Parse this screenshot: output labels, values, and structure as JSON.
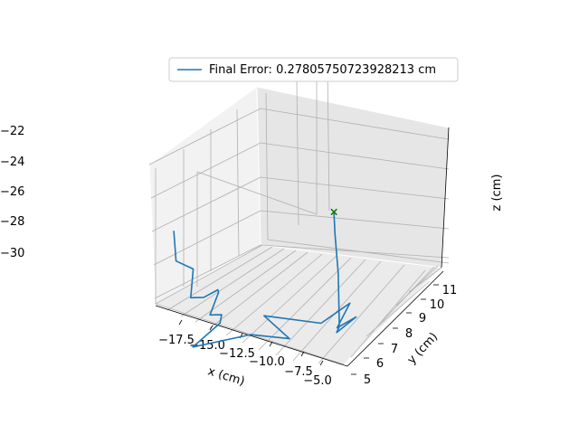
{
  "chart_data": {
    "type": "line3d",
    "legend": {
      "location": "upper-center",
      "entries": [
        {
          "label": "Final Error: 0.27805750723928213 cm",
          "color": "#1f77b4"
        }
      ]
    },
    "axes": {
      "x": {
        "label": "x (cm)",
        "ticks": [
          "−17.5",
          "−15.0",
          "−12.5",
          "−10.0",
          "−7.5",
          "−5.0"
        ]
      },
      "y": {
        "label": "y (cm)",
        "ticks": [
          "5",
          "6",
          "7",
          "8",
          "9",
          "10",
          "11"
        ]
      },
      "z": {
        "label": "z (cm)",
        "ticks": [
          "−30",
          "−28",
          "−26",
          "−24",
          "−22"
        ]
      }
    },
    "grid": true,
    "series": [
      {
        "color": "#1f77b4",
        "points": [
          {
            "x": -17.8,
            "y": 7.6,
            "z": -22.0
          },
          {
            "x": -17.6,
            "y": 7.6,
            "z": -25.2
          },
          {
            "x": -16.3,
            "y": 7.8,
            "z": -26.0
          },
          {
            "x": -16.3,
            "y": 7.6,
            "z": -28.8
          },
          {
            "x": -15.8,
            "y": 8.2,
            "z": -29.5
          },
          {
            "x": -15.2,
            "y": 8.8,
            "z": -29.4
          },
          {
            "x": -14.6,
            "y": 8.3,
            "z": -28.8
          },
          {
            "x": -14.6,
            "y": 7.6,
            "z": -30.2
          },
          {
            "x": -14.0,
            "y": 8.0,
            "z": -30.6
          },
          {
            "x": -13.5,
            "y": 7.4,
            "z": -30.5
          },
          {
            "x": -14.6,
            "y": 6.2,
            "z": -31.6
          },
          {
            "x": -10.9,
            "y": 7.5,
            "z": -31.2
          },
          {
            "x": -8.0,
            "y": 8.0,
            "z": -31.6
          },
          {
            "x": -10.8,
            "y": 8.5,
            "z": -30.6
          },
          {
            "x": -6.5,
            "y": 9.2,
            "z": -31.3
          },
          {
            "x": -5.9,
            "y": 11.0,
            "z": -31.6
          },
          {
            "x": -5.2,
            "y": 9.3,
            "z": -31.6
          },
          {
            "x": -4.7,
            "y": 10.4,
            "z": -31.9
          },
          {
            "x": -4.8,
            "y": 8.9,
            "z": -31.4
          },
          {
            "x": -5.0,
            "y": 9.3,
            "z": -31.4
          },
          {
            "x": -6.5,
            "y": 10.6,
            "z": -28.0
          },
          {
            "x": -7.0,
            "y": 10.8,
            "z": -24.2
          },
          {
            "x": -7.2,
            "y": 10.9,
            "z": -22.0
          }
        ]
      }
    ],
    "markers": [
      {
        "shape": "x",
        "color": "#008000",
        "x": -7.2,
        "y": 10.9,
        "z": -22.0
      }
    ]
  }
}
